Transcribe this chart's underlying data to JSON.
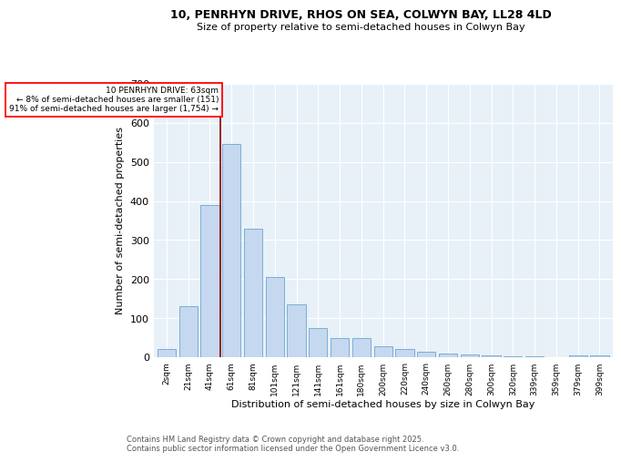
{
  "title1": "10, PENRHYN DRIVE, RHOS ON SEA, COLWYN BAY, LL28 4LD",
  "title2": "Size of property relative to semi-detached houses in Colwyn Bay",
  "xlabel": "Distribution of semi-detached houses by size in Colwyn Bay",
  "ylabel": "Number of semi-detached properties",
  "categories": [
    "2sqm",
    "21sqm",
    "41sqm",
    "61sqm",
    "81sqm",
    "101sqm",
    "121sqm",
    "141sqm",
    "161sqm",
    "180sqm",
    "200sqm",
    "220sqm",
    "240sqm",
    "260sqm",
    "280sqm",
    "300sqm",
    "320sqm",
    "339sqm",
    "359sqm",
    "379sqm",
    "399sqm"
  ],
  "values": [
    20,
    130,
    390,
    545,
    330,
    205,
    135,
    75,
    50,
    50,
    27,
    20,
    13,
    10,
    8,
    5,
    2,
    2,
    0,
    5,
    5
  ],
  "bar_color": "#c5d8ef",
  "bar_edge_color": "#7aafd4",
  "red_line_x": 2.5,
  "annotation_title": "10 PENRHYN DRIVE: 63sqm",
  "annotation_line1": "← 8% of semi-detached houses are smaller (151)",
  "annotation_line2": "91% of semi-detached houses are larger (1,754) →",
  "annotation_box_color": "white",
  "annotation_box_edge": "red",
  "bg_color": "#e8f0f8",
  "footer1": "Contains HM Land Registry data © Crown copyright and database right 2025.",
  "footer2": "Contains public sector information licensed under the Open Government Licence v3.0.",
  "ylim": [
    0,
    700
  ],
  "yticks": [
    0,
    100,
    200,
    300,
    400,
    500,
    600,
    700
  ]
}
